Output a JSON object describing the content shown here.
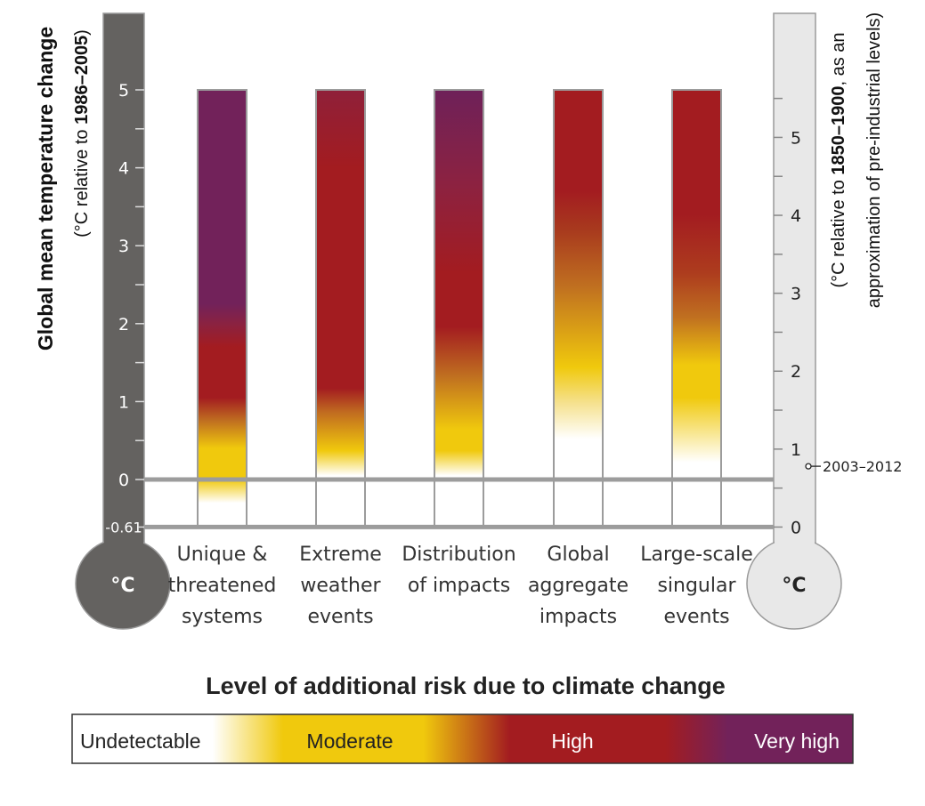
{
  "chart_data": {
    "type": "bar",
    "title": "Level of additional risk due to climate change",
    "left_axis": {
      "title": "Global mean temperature change",
      "subtitle_prefix": "(°C relative to ",
      "subtitle_bold": "1986–2005",
      "subtitle_suffix": ")",
      "unit": "°C",
      "ticks": [
        "0",
        "1",
        "2",
        "3",
        "4",
        "5"
      ],
      "extra_tick": "-0.61",
      "range": [
        -0.61,
        5
      ]
    },
    "right_axis": {
      "subtitle_prefix": "(°C relative to ",
      "subtitle_bold": "1850–1900",
      "subtitle_suffix": ", as an",
      "subtitle_line2": "approximation of pre-industrial levels)",
      "unit": "°C",
      "ticks": [
        "0",
        "1",
        "2",
        "3",
        "4",
        "5"
      ],
      "offset": 0.61,
      "marker_value": 0.78,
      "marker_label": "2003–2012"
    },
    "categories": [
      [
        "Unique &",
        "threatened",
        "systems"
      ],
      [
        "Extreme",
        "weather",
        "events"
      ],
      [
        "Distribution",
        "of impacts"
      ],
      [
        "Global",
        "aggregate",
        "impacts"
      ],
      [
        "Large-scale",
        "singular",
        "events"
      ]
    ],
    "bar_range": [
      -0.61,
      5
    ],
    "bars": [
      {
        "stops": [
          [
            -0.3,
            "#ffffff"
          ],
          [
            0.0,
            "#f0c90d"
          ],
          [
            0.4,
            "#f0c90d"
          ],
          [
            0.75,
            "#c07020"
          ],
          [
            1.05,
            "#a31c20"
          ],
          [
            1.7,
            "#a31c20"
          ],
          [
            2.0,
            "#8a2241"
          ],
          [
            2.25,
            "#72225a"
          ],
          [
            5,
            "#72225a"
          ]
        ]
      },
      {
        "stops": [
          [
            0.05,
            "#ffffff"
          ],
          [
            0.37,
            "#f0c90d"
          ],
          [
            0.87,
            "#c06a20"
          ],
          [
            1.17,
            "#a31c20"
          ],
          [
            4.0,
            "#a31c20"
          ],
          [
            5,
            "#8f2039"
          ]
        ]
      },
      {
        "stops": [
          [
            0.05,
            "#ffffff"
          ],
          [
            0.37,
            "#f0c90d"
          ],
          [
            0.64,
            "#f0c90d"
          ],
          [
            1.32,
            "#c07020"
          ],
          [
            1.96,
            "#a31c20"
          ],
          [
            2.65,
            "#a31c20"
          ],
          [
            3.8,
            "#8c2241"
          ],
          [
            5,
            "#6e2159"
          ]
        ]
      },
      {
        "stops": [
          [
            0.52,
            "#ffffff"
          ],
          [
            1.0,
            "#f5e08a"
          ],
          [
            1.44,
            "#f0c90d"
          ],
          [
            2.47,
            "#c07020"
          ],
          [
            3.2,
            "#a83a1e"
          ],
          [
            3.7,
            "#a31c20"
          ],
          [
            5,
            "#a31c20"
          ]
        ]
      },
      {
        "stops": [
          [
            0.22,
            "#ffffff"
          ],
          [
            1.05,
            "#f0c90d"
          ],
          [
            1.47,
            "#f0c90d"
          ],
          [
            2.08,
            "#c07020"
          ],
          [
            2.65,
            "#ad3c1e"
          ],
          [
            3.4,
            "#a31c20"
          ],
          [
            5,
            "#a31c20"
          ]
        ]
      }
    ],
    "legend": {
      "labels": [
        "Undetectable",
        "Moderate",
        "High",
        "Very high"
      ],
      "colors": {
        "undetectable": "#ffffff",
        "moderate": "#f0c90d",
        "high": "#a31c20",
        "very_high": "#72225a"
      }
    },
    "thermometer_colors": {
      "left": "#646260",
      "right": "#e8e8e8"
    }
  }
}
